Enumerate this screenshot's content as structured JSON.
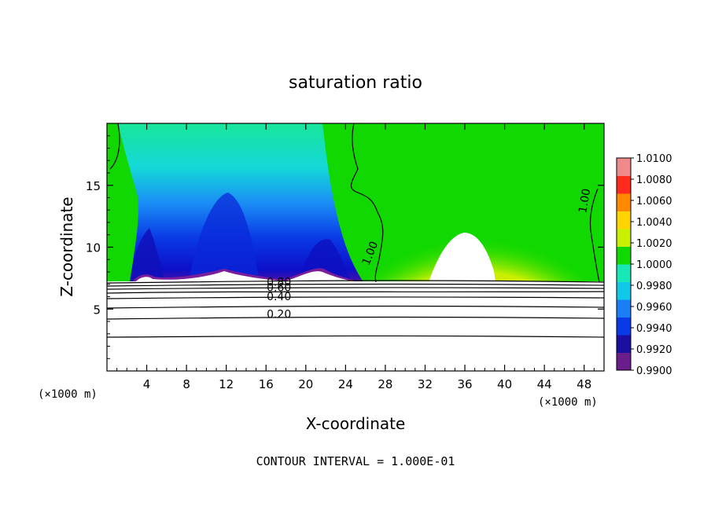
{
  "chart_data": {
    "type": "heatmap",
    "title": "saturation ratio",
    "xlabel": "X-coordinate",
    "ylabel": "Z-coordinate",
    "x_unit_left": "(×1000 m)",
    "x_unit_right": "(×1000 m)",
    "xlim": [
      0,
      50
    ],
    "ylim": [
      0,
      20
    ],
    "xticks": [
      4,
      8,
      12,
      16,
      20,
      24,
      28,
      32,
      36,
      40,
      44,
      48
    ],
    "yticks": [
      5,
      10,
      15
    ],
    "colorbar": {
      "min": 0.99,
      "max": 1.01,
      "tick_labels": [
        "0.9900",
        "0.9920",
        "0.9940",
        "0.9960",
        "0.9980",
        "1.0000",
        "1.0020",
        "1.0040",
        "1.0060",
        "1.0080",
        "1.0100"
      ],
      "colors": [
        "#6a1e8c",
        "#1a0fa0",
        "#0a3ae6",
        "#1a7ef5",
        "#12c8e8",
        "#18e8b8",
        "#10d800",
        "#c8f000",
        "#ffd400",
        "#ff8a00",
        "#ff2a1e",
        "#f08a8a"
      ]
    },
    "contour_interval_text": "CONTOUR INTERVAL = 1.000E-01",
    "contour_labels": [
      {
        "text": "1.00",
        "x": 26.8,
        "y": 9.4
      },
      {
        "text": "1.00",
        "x": 48.4,
        "y": 13.7
      },
      {
        "text": "0.80",
        "x": 17.3,
        "y": 6.9
      },
      {
        "text": "0.60",
        "x": 17.3,
        "y": 6.45
      },
      {
        "text": "0.40",
        "x": 17.3,
        "y": 5.7
      },
      {
        "text": "0.20",
        "x": 17.3,
        "y": 4.3
      }
    ],
    "contour_lines": [
      {
        "level": "0.20",
        "z": 4.25
      },
      {
        "level": "0.30",
        "z": 5.0
      },
      {
        "level": "0.40",
        "z": 5.7
      },
      {
        "level": "0.50",
        "z": 6.2
      },
      {
        "level": "0.60",
        "z": 6.5
      },
      {
        "level": "0.70",
        "z": 6.8
      },
      {
        "level": "0.80",
        "z": 7.05
      },
      {
        "level": "0.10",
        "z": 2.85
      }
    ],
    "features": [
      {
        "kind": "dry_region",
        "x_range": [
          0,
          26
        ],
        "z_range": [
          7.2,
          20
        ],
        "min_value": 0.9905
      },
      {
        "kind": "supersaturated_dome",
        "x_range": [
          27,
          46
        ],
        "z_range": [
          7.2,
          16
        ],
        "max_value": 1.0095,
        "peak_x": 36
      }
    ]
  }
}
